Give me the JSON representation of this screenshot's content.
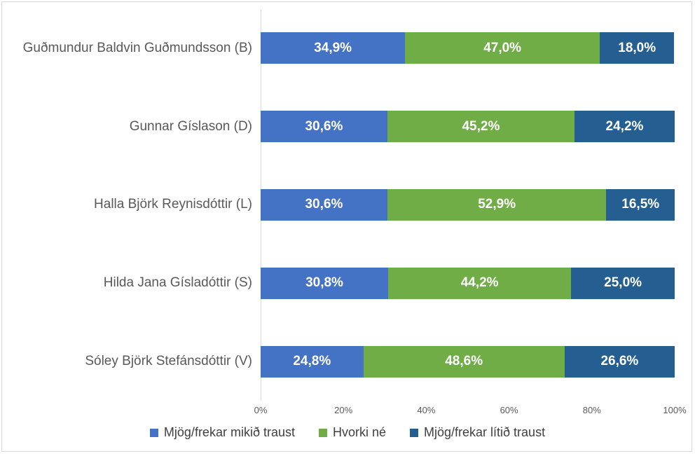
{
  "chart_data": {
    "type": "bar",
    "orientation": "horizontal",
    "stacked": true,
    "grid": false,
    "legend_position": "bottom",
    "xlim": [
      0,
      100
    ],
    "x_ticks": [
      "0%",
      "20%",
      "40%",
      "60%",
      "80%",
      "100%"
    ],
    "categories": [
      "Guðmundur Baldvin Guðmundsson (B)",
      "Gunnar Gíslason (D)",
      "Halla Björk Reynisdóttir (L)",
      "Hilda Jana Gísladóttir (S)",
      "Sóley Björk Stefánsdóttir (V)"
    ],
    "series": [
      {
        "name": "Mjög/frekar mikið traust",
        "color": "#4472C4",
        "values": [
          34.9,
          30.6,
          30.6,
          30.8,
          24.8
        ],
        "labels": [
          "34,9%",
          "30,6%",
          "30,6%",
          "30,8%",
          "24,8%"
        ]
      },
      {
        "name": "Hvorki né",
        "color": "#70AD47",
        "values": [
          47.0,
          45.2,
          52.9,
          44.2,
          48.6
        ],
        "labels": [
          "47,0%",
          "45,2%",
          "52,9%",
          "44,2%",
          "48,6%"
        ]
      },
      {
        "name": "Mjög/frekar lítið traust",
        "color": "#255E91",
        "values": [
          18.0,
          24.2,
          16.5,
          25.0,
          26.6
        ],
        "labels": [
          "18,0%",
          "24,2%",
          "16,5%",
          "25,0%",
          "26,6%"
        ]
      }
    ]
  },
  "colors": {
    "axis_line": "#d9d9d9",
    "frame_border": "#d9d9d9",
    "category_text": "#595959",
    "tick_text": "#595959",
    "legend_text": "#404040",
    "data_label_text": "#ffffff"
  }
}
